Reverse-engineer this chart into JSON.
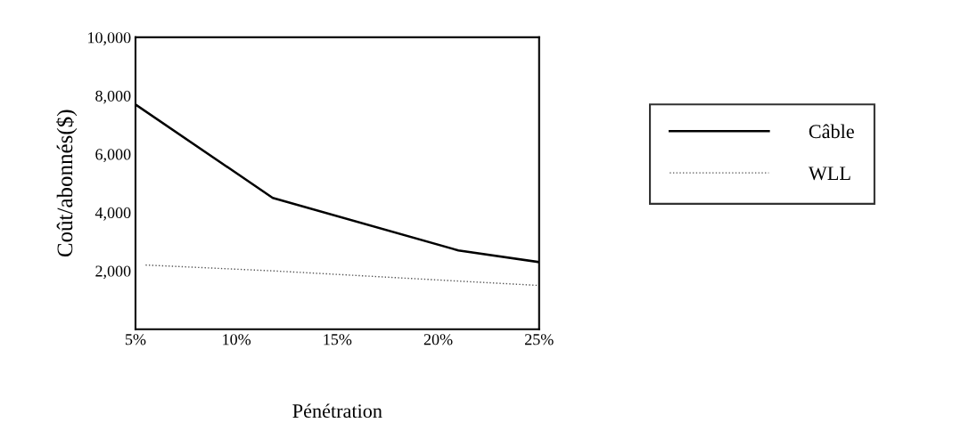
{
  "chart_data": {
    "type": "line",
    "xlabel": "Pénétration",
    "ylabel": "Coût/abonnés($)",
    "xlim": [
      5,
      25
    ],
    "xticks": [
      {
        "value": 5,
        "label": "5%"
      },
      {
        "value": 10,
        "label": "10%"
      },
      {
        "value": 15,
        "label": "15%"
      },
      {
        "value": 20,
        "label": "20%"
      },
      {
        "value": 25,
        "label": "25%"
      }
    ],
    "ylim": [
      0,
      10000
    ],
    "yticks": [
      {
        "value": 2000,
        "label": "2,000"
      },
      {
        "value": 4000,
        "label": "4,000"
      },
      {
        "value": 6000,
        "label": "6,000"
      },
      {
        "value": 8000,
        "label": "8,000"
      },
      {
        "value": 10000,
        "label": "10,000"
      }
    ],
    "series": [
      {
        "name": "Câble",
        "color": "#000000",
        "line_style": "solid",
        "x": [
          5,
          11.8,
          21,
          25
        ],
        "values": [
          7700,
          4500,
          2700,
          2300
        ]
      },
      {
        "name": "WLL",
        "color": "#555555",
        "line_style": "dotted",
        "x": [
          5.5,
          11.8,
          21,
          25
        ],
        "values": [
          2200,
          2000,
          1650,
          1500
        ]
      }
    ],
    "legend": "right",
    "grid": false,
    "marker": "none"
  }
}
